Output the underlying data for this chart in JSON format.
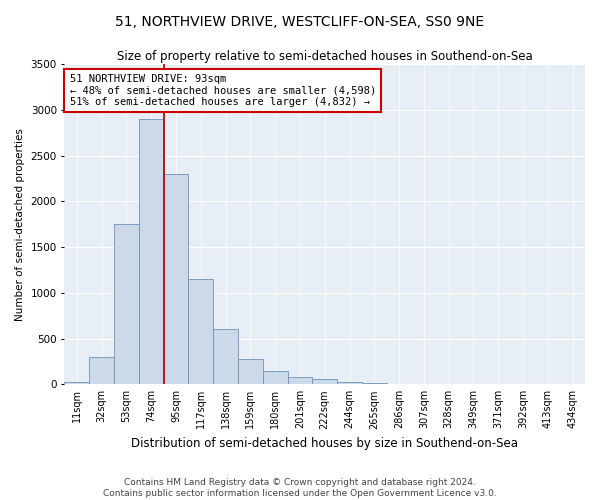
{
  "title": "51, NORTHVIEW DRIVE, WESTCLIFF-ON-SEA, SS0 9NE",
  "subtitle": "Size of property relative to semi-detached houses in Southend-on-Sea",
  "xlabel": "Distribution of semi-detached houses by size in Southend-on-Sea",
  "ylabel": "Number of semi-detached properties",
  "footer1": "Contains HM Land Registry data © Crown copyright and database right 2024.",
  "footer2": "Contains public sector information licensed under the Open Government Licence v3.0.",
  "categories": [
    "11sqm",
    "32sqm",
    "53sqm",
    "74sqm",
    "95sqm",
    "117sqm",
    "138sqm",
    "159sqm",
    "180sqm",
    "201sqm",
    "222sqm",
    "244sqm",
    "265sqm",
    "286sqm",
    "307sqm",
    "328sqm",
    "349sqm",
    "371sqm",
    "392sqm",
    "413sqm",
    "434sqm"
  ],
  "values": [
    30,
    300,
    1750,
    2900,
    2300,
    1150,
    600,
    280,
    150,
    80,
    55,
    30,
    15,
    0,
    0,
    0,
    0,
    0,
    0,
    0,
    0
  ],
  "marker_index": 3,
  "marker_label": "51 NORTHVIEW DRIVE: 93sqm",
  "annotation_line1": "← 48% of semi-detached houses are smaller (4,598)",
  "annotation_line2": "51% of semi-detached houses are larger (4,832) →",
  "bar_color": "#ccd9e8",
  "bar_edge_color": "#7090b8",
  "marker_color": "#aa0000",
  "annotation_box_edge": "#cc0000",
  "ylim": [
    0,
    3500
  ],
  "yticks": [
    0,
    500,
    1000,
    1500,
    2000,
    2500,
    3000,
    3500
  ],
  "background_color": "#e8eef5",
  "grid_color": "#ffffff",
  "title_fontsize": 10,
  "subtitle_fontsize": 8.5,
  "xlabel_fontsize": 8.5,
  "ylabel_fontsize": 7.5,
  "tick_fontsize": 7,
  "footer_fontsize": 6.5,
  "annotation_fontsize": 7.5
}
